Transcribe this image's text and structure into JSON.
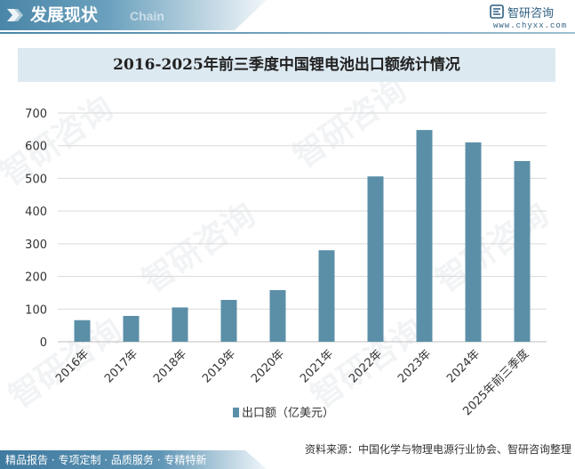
{
  "header": {
    "title": "发展现状",
    "subtitle": "Chain"
  },
  "brand": {
    "name": "智研咨询",
    "url": "www.chyxx.com"
  },
  "watermark_text": "智研咨询",
  "chart_data": {
    "type": "bar",
    "title": "2016-2025年前三季度中国锂电池出口额统计情况",
    "categories": [
      "2016年",
      "2017年",
      "2018年",
      "2019年",
      "2020年",
      "2021年",
      "2022年",
      "2023年",
      "2024年",
      "2025年前三季度"
    ],
    "series": [
      {
        "name": "出口额（亿美元）",
        "values": [
          66,
          79,
          105,
          128,
          158,
          280,
          506,
          648,
          610,
          553
        ]
      }
    ],
    "yticks": [
      0,
      100,
      200,
      300,
      400,
      500,
      600,
      700
    ],
    "ylim": [
      0,
      700
    ],
    "grid": true,
    "legend_position": "bottom",
    "colors": {
      "bar": "#5b8fa8",
      "grid": "#d9d9d9"
    }
  },
  "footer": {
    "services": "精品报告 · 专项定制 · 品质服务 · 专精特新",
    "source": "资料来源：中国化学与物理电源行业协会、智研咨询整理"
  }
}
